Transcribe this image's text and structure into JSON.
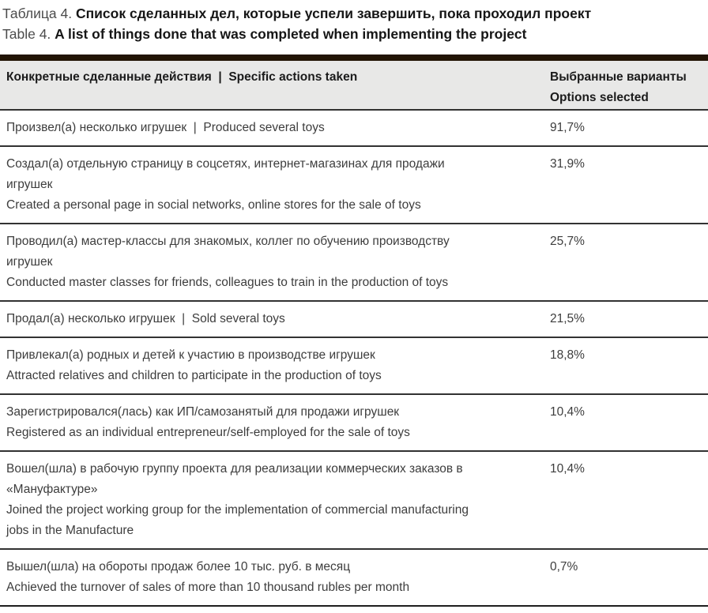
{
  "title": {
    "ru_label": "Таблица 4.",
    "ru_text": "Список сделанных дел, которые успели завершить, пока проходил проект",
    "en_label": "Table 4.",
    "en_text": "A list of things done that was completed when implementing the project"
  },
  "colors": {
    "table_top_bar": "#221405",
    "header_background": "#e8e8e7",
    "row_divider": "#323232",
    "body_text": "#3d3d3d"
  },
  "table": {
    "header": {
      "actions_column": "Конкретные сделанные действия  |  Specific actions taken",
      "options_column_ru": "Выбранные варианты",
      "options_column_en": "Options selected"
    },
    "rows": [
      {
        "lines": [
          "Произвел(а) несколько игрушек  |  Produced several toys"
        ],
        "value": "91,7%"
      },
      {
        "lines": [
          "Создал(а) отдельную страницу в соцсетях, интернет-магазинах для продажи",
          "игрушек",
          "Created a personal page in social networks, online stores for the sale of toys"
        ],
        "value": "31,9%"
      },
      {
        "lines": [
          "Проводил(а) мастер-классы для знакомых, коллег по обучению производству",
          "игрушек",
          "Conducted master classes for friends, colleagues to train in the production of toys"
        ],
        "value": "25,7%"
      },
      {
        "lines": [
          "Продал(а) несколько игрушек  |  Sold several toys"
        ],
        "value": "21,5%"
      },
      {
        "lines": [
          "Привлекал(а) родных и детей к участию в производстве игрушек",
          "Attracted relatives and children to participate in the production of toys"
        ],
        "value": "18,8%"
      },
      {
        "lines": [
          "Зарегистрировался(лась) как ИП/самозанятый для продажи игрушек",
          "Registered as an individual entrepreneur/self-employed for the sale of toys"
        ],
        "value": "10,4%"
      },
      {
        "lines": [
          "Вошел(шла) в рабочую группу проекта для реализации коммерческих заказов в",
          "«Мануфактуре»",
          "Joined the project working group for the implementation of commercial manufacturing",
          "jobs in the Manufacture"
        ],
        "value": "10,4%"
      },
      {
        "lines": [
          "Вышел(шла) на обороты продаж более 10 тыс. руб. в месяц",
          "Achieved the turnover of sales of more than 10 thousand rubles per month"
        ],
        "value": "0,7%"
      }
    ]
  }
}
